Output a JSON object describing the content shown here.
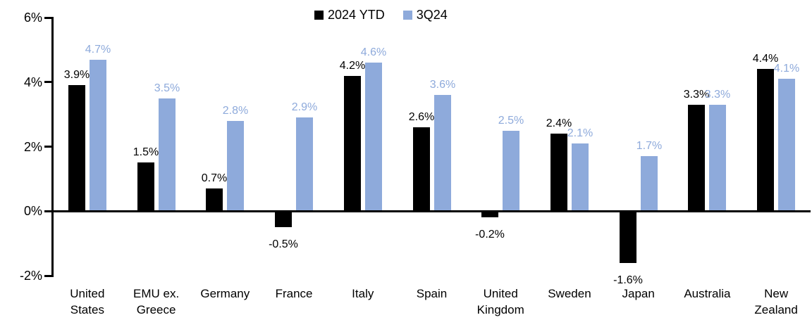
{
  "chart_data": {
    "type": "bar",
    "title": "",
    "xlabel": "",
    "ylabel": "",
    "categories": [
      "United\nStates",
      "EMU ex.\nGreece",
      "Germany",
      "France",
      "Italy",
      "Spain",
      "United\nKingdom",
      "Sweden",
      "Japan",
      "Australia",
      "New\nZealand"
    ],
    "series": [
      {
        "name": "2024 YTD",
        "color": "#000000",
        "label_color": "#000000",
        "values": [
          3.9,
          1.5,
          0.7,
          -0.5,
          4.2,
          2.6,
          -0.2,
          2.4,
          -1.6,
          3.3,
          4.4
        ]
      },
      {
        "name": "3Q24",
        "color": "#8EAADB",
        "label_color": "#8EAADB",
        "values": [
          4.7,
          3.5,
          2.8,
          2.9,
          4.6,
          3.6,
          2.5,
          2.1,
          1.7,
          3.3,
          4.1
        ]
      }
    ],
    "ylim": [
      -2,
      6
    ],
    "yticks": [
      -2,
      0,
      2,
      4,
      6
    ],
    "ytick_labels": [
      "-2%",
      "0%",
      "2%",
      "4%",
      "6%"
    ],
    "value_suffix": "%",
    "value_decimals": 1,
    "grid": false,
    "legend_position": "top-center",
    "axis_color": "#000000",
    "background": "#FFFFFF"
  }
}
